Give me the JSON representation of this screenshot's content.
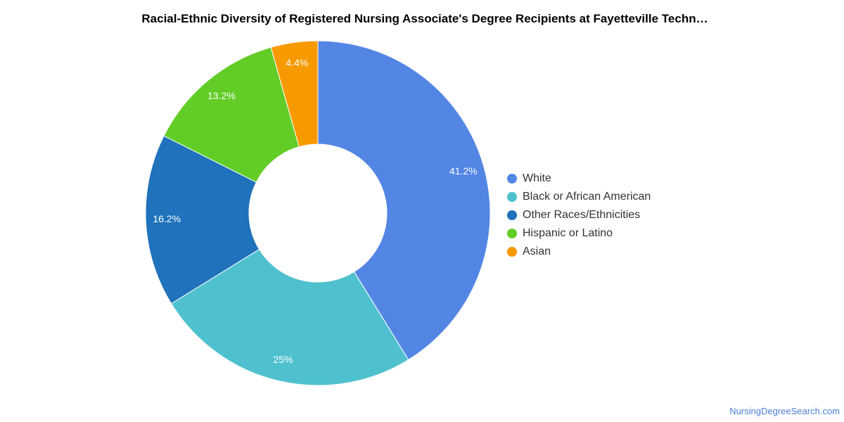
{
  "chart_data": {
    "type": "pie",
    "title": "Racial-Ethnic Diversity of Registered Nursing Associate's Degree Recipients at Fayetteville Techn…",
    "donut": true,
    "slices": [
      {
        "label": "White",
        "value": 41.2,
        "display": "41.2%",
        "color": "#5386e4"
      },
      {
        "label": "Black or African American",
        "value": 25,
        "display": "25%",
        "color": "#4fc1ce"
      },
      {
        "label": "Other Races/Ethnicities",
        "value": 16.2,
        "display": "16.2%",
        "color": "#1f72bb"
      },
      {
        "label": "Hispanic or Latino",
        "value": 13.2,
        "display": "13.2%",
        "color": "#62cd26"
      },
      {
        "label": "Asian",
        "value": 4.4,
        "display": "4.4%",
        "color": "#f79a00"
      }
    ],
    "legend_position": "right"
  },
  "footer": {
    "source": "NursingDegreeSearch.com"
  }
}
